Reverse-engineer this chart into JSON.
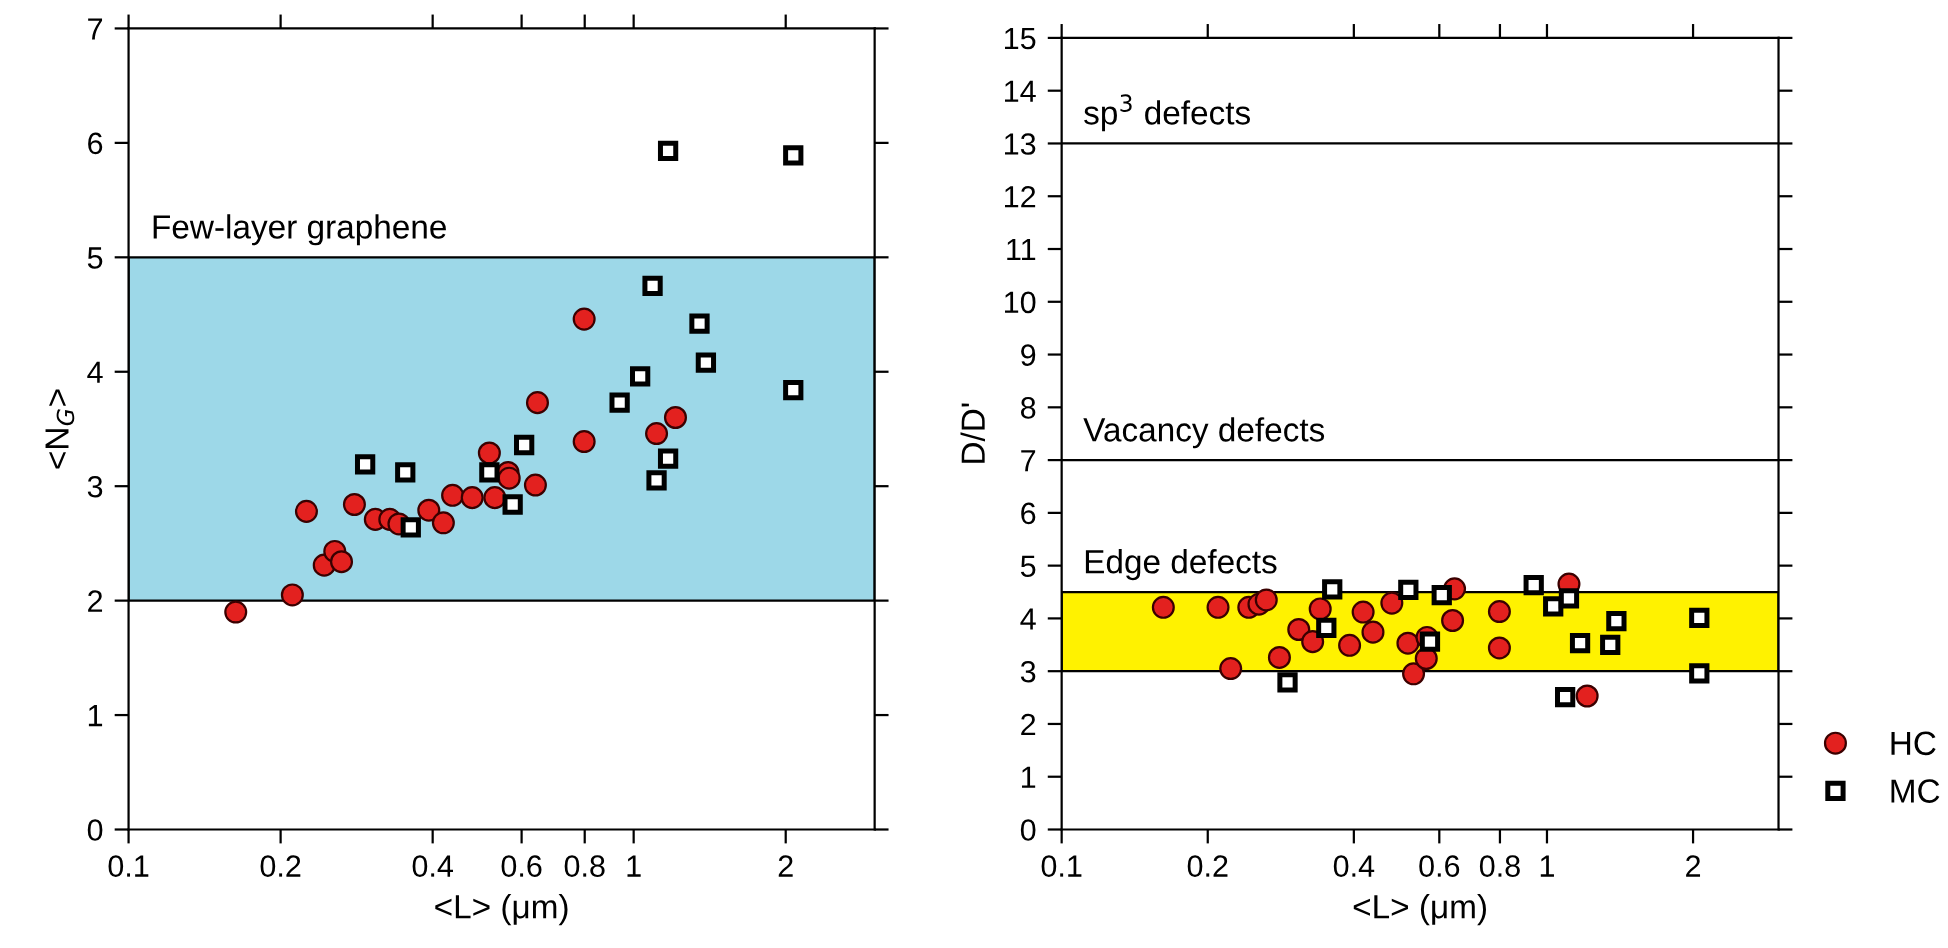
{
  "chart_data": [
    {
      "type": "scatter",
      "xlabel": "<L> (μm)",
      "ylabel": "<N$_{G}$>",
      "log": "x",
      "xlim": [
        0.1,
        3
      ],
      "xticks": [
        0.1,
        0.2,
        0.4,
        0.6,
        0.8,
        1,
        2
      ],
      "ylim": [
        0,
        7
      ],
      "yticks": [
        0,
        1,
        2,
        3,
        4,
        5,
        6,
        7
      ],
      "grid": false,
      "legend": false,
      "bands": [
        {
          "axis": "y",
          "from": 2,
          "to": 5,
          "label": "Few-layer graphene",
          "color": "#9dd8e8"
        }
      ],
      "series": [
        {
          "color": "#e3211f",
          "marker": "circle",
          "x": [
            0.163,
            0.211,
            0.225,
            0.244,
            0.256,
            0.264,
            0.28,
            0.308,
            0.329,
            0.343,
            0.393,
            0.42,
            0.438,
            0.479,
            0.518,
            0.531,
            0.564,
            0.567,
            0.639,
            0.645,
            0.798,
            0.798,
            1.11,
            1.21
          ],
          "values": [
            1.9,
            2.05,
            2.78,
            2.31,
            2.43,
            2.34,
            2.84,
            2.71,
            2.71,
            2.67,
            2.79,
            2.68,
            2.92,
            2.9,
            3.29,
            2.9,
            3.12,
            3.07,
            3.01,
            3.73,
            4.46,
            3.39,
            3.46,
            3.6
          ]
        },
        {
          "color": "#000000",
          "marker": "square",
          "x": [
            0.294,
            0.353,
            0.362,
            0.518,
            0.576,
            0.607,
            0.938,
            1.03,
            1.09,
            1.11,
            1.17,
            1.35,
            1.39,
            2.07,
            1.17,
            2.07
          ],
          "values": [
            3.19,
            3.12,
            2.64,
            3.12,
            2.84,
            3.36,
            3.73,
            3.96,
            4.75,
            3.05,
            3.24,
            4.42,
            4.08,
            3.84,
            5.93,
            5.89
          ]
        }
      ]
    },
    {
      "type": "scatter",
      "xlabel": "<L> (μm)",
      "ylabel": "D/D'",
      "log": "x",
      "xlim": [
        0.1,
        3
      ],
      "xticks": [
        0.1,
        0.2,
        0.4,
        0.6,
        0.8,
        1,
        2
      ],
      "ylim": [
        0,
        15
      ],
      "yticks": [
        0,
        1,
        2,
        3,
        4,
        5,
        6,
        7,
        8,
        9,
        10,
        11,
        12,
        13,
        14,
        15
      ],
      "grid": false,
      "legend": "right",
      "ref_lines": [
        {
          "axis": "y",
          "value": 13,
          "label": "sp$^{3}$ defects",
          "color": "#000000"
        },
        {
          "axis": "y",
          "value": 7,
          "label": "Vacancy defects",
          "color": "#000000"
        }
      ],
      "bands": [
        {
          "axis": "y",
          "from": 3,
          "to": 4.5,
          "label": "Edge defects",
          "color": "#fff200"
        }
      ],
      "series": [
        {
          "name": "HC",
          "color": "#e3211f",
          "marker": "circle",
          "x": [
            0.162,
            0.21,
            0.223,
            0.243,
            0.255,
            0.264,
            0.281,
            0.308,
            0.329,
            0.341,
            0.392,
            0.418,
            0.438,
            0.479,
            0.517,
            0.531,
            0.564,
            0.566,
            0.639,
            0.645,
            0.798,
            0.798,
            1.11,
            1.21
          ],
          "values": [
            4.21,
            4.21,
            3.05,
            4.21,
            4.27,
            4.35,
            3.26,
            3.79,
            3.56,
            4.18,
            3.49,
            4.12,
            3.74,
            4.29,
            3.53,
            2.95,
            3.24,
            3.64,
            3.96,
            4.56,
            4.13,
            3.44,
            4.65,
            2.53
          ]
        },
        {
          "name": "MC",
          "color": "#000000",
          "marker": "square",
          "x": [
            0.292,
            0.351,
            0.361,
            0.518,
            0.574,
            0.607,
            0.939,
            1.03,
            1.09,
            1.11,
            1.17,
            1.35,
            1.39,
            2.06,
            2.06
          ],
          "values": [
            2.79,
            3.82,
            4.55,
            4.54,
            3.56,
            4.44,
            4.63,
            4.23,
            2.51,
            4.38,
            3.53,
            3.5,
            3.95,
            4.01,
            2.96
          ]
        }
      ]
    }
  ]
}
